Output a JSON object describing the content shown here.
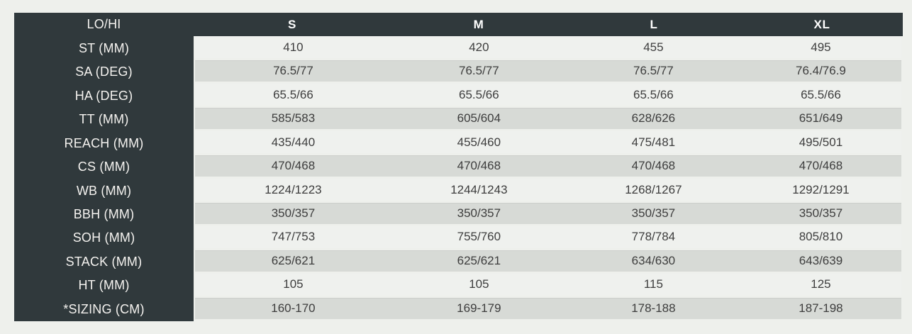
{
  "colors": {
    "bg": "#eef0ec",
    "dark": "#30393c",
    "row_light": "#eff1ee",
    "row_gray": "#d7dad6",
    "data_text": "#3d3d3d",
    "label_text": "#f5f3f0",
    "header_text": "#ffffff"
  },
  "chart_data": {
    "type": "table",
    "corner_label": "LO/HI",
    "columns": [
      "S",
      "M",
      "L",
      "XL"
    ],
    "rows": [
      {
        "label": "ST (MM)",
        "values": [
          "410",
          "420",
          "455",
          "495"
        ]
      },
      {
        "label": "SA (DEG)",
        "values": [
          "76.5/77",
          "76.5/77",
          "76.5/77",
          "76.4/76.9"
        ]
      },
      {
        "label": "HA (DEG)",
        "values": [
          "65.5/66",
          "65.5/66",
          "65.5/66",
          "65.5/66"
        ]
      },
      {
        "label": "TT (MM)",
        "values": [
          "585/583",
          "605/604",
          "628/626",
          "651/649"
        ]
      },
      {
        "label": "REACH (MM)",
        "values": [
          "435/440",
          "455/460",
          "475/481",
          "495/501"
        ]
      },
      {
        "label": "CS (MM)",
        "values": [
          "470/468",
          "470/468",
          "470/468",
          "470/468"
        ]
      },
      {
        "label": "WB (MM)",
        "values": [
          "1224/1223",
          "1244/1243",
          "1268/1267",
          "1292/1291"
        ]
      },
      {
        "label": "BBH (MM)",
        "values": [
          "350/357",
          "350/357",
          "350/357",
          "350/357"
        ]
      },
      {
        "label": "SOH (MM)",
        "values": [
          "747/753",
          "755/760",
          "778/784",
          "805/810"
        ]
      },
      {
        "label": "STACK (MM)",
        "values": [
          "625/621",
          "625/621",
          "634/630",
          "643/639"
        ]
      },
      {
        "label": "HT (MM)",
        "values": [
          "105",
          "105",
          "115",
          "125"
        ]
      },
      {
        "label": "*SIZING (CM)",
        "values": [
          "160-170",
          "169-179",
          "178-188",
          "187-198"
        ]
      }
    ]
  }
}
